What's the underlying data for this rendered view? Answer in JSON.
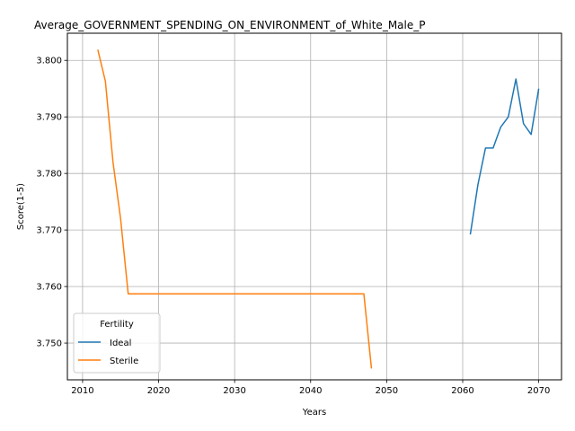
{
  "chart_data": {
    "type": "line",
    "title": "Average_GOVERNMENT_SPENDING_ON_ENVIRONMENT_of_White_Male_P",
    "xlabel": "Years",
    "ylabel": "Score(1-5)",
    "xlim": [
      2008,
      2073
    ],
    "ylim": [
      3.7435,
      3.8048
    ],
    "xticks": [
      2010,
      2020,
      2030,
      2040,
      2050,
      2060,
      2070
    ],
    "yticks": [
      3.75,
      3.76,
      3.77,
      3.78,
      3.79,
      3.8
    ],
    "yticks_text": [
      "3.750",
      "3.760",
      "3.770",
      "3.780",
      "3.790",
      "3.800"
    ],
    "grid": true,
    "legend": {
      "title": "Fertility",
      "position": "lower-left"
    },
    "series": [
      {
        "name": "Ideal",
        "color": "#1f77b4",
        "x": [
          2061,
          2062,
          2063,
          2064,
          2065,
          2066,
          2067,
          2068,
          2069,
          2070
        ],
        "y": [
          3.7692,
          3.778,
          3.7845,
          3.7845,
          3.7882,
          3.79,
          3.7967,
          3.7888,
          3.7869,
          3.795
        ]
      },
      {
        "name": "Sterile",
        "color": "#ff7f0e",
        "x": [
          2012,
          2013,
          2014,
          2015,
          2016,
          2017,
          2020,
          2025,
          2030,
          2035,
          2040,
          2045,
          2046,
          2047,
          2048
        ],
        "y": [
          3.8019,
          3.7963,
          3.782,
          3.772,
          3.7587,
          3.7587,
          3.7587,
          3.7587,
          3.7587,
          3.7587,
          3.7587,
          3.7587,
          3.7587,
          3.7587,
          3.7455
        ]
      }
    ]
  }
}
